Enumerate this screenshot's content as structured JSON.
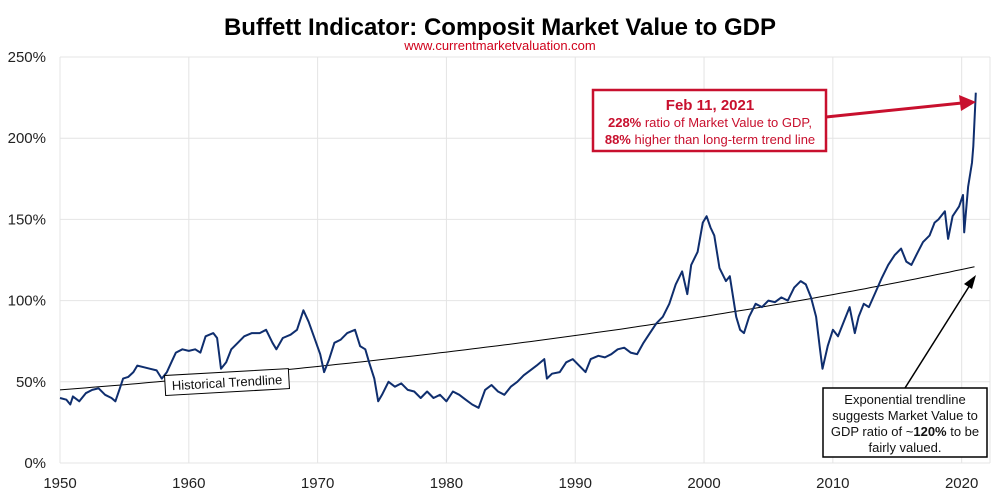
{
  "chart_data": {
    "type": "line",
    "title": "Buffett Indicator: Composit Market Value to GDP",
    "subtitle": "www.currentmarketvaluation.com",
    "xlabel": "",
    "ylabel": "",
    "xlim": [
      1950,
      2022.2
    ],
    "ylim": [
      0,
      250
    ],
    "x_ticks": [
      "1950",
      "1960",
      "1970",
      "1980",
      "1990",
      "2000",
      "2010",
      "2020"
    ],
    "y_ticks": [
      "0%",
      "50%",
      "100%",
      "150%",
      "200%",
      "250%"
    ],
    "grid": true,
    "colors": {
      "series": "#0f2e6e",
      "trend": "#000000",
      "annotation": "#c8102e"
    },
    "series": [
      {
        "x": [
          1950.0,
          1950.5,
          1950.8,
          1951.0,
          1951.5,
          1952.0,
          1952.5,
          1953.0,
          1953.5,
          1954.0,
          1954.3,
          1954.6,
          1954.9,
          1955.3,
          1955.7,
          1956.0,
          1956.5,
          1957.0,
          1957.5,
          1957.9,
          1958.3,
          1958.7,
          1959.0,
          1959.5,
          1960.0,
          1960.5,
          1960.9,
          1961.3,
          1961.9,
          1962.2,
          1962.5,
          1962.9,
          1963.3,
          1963.8,
          1964.3,
          1964.9,
          1965.5,
          1966.0,
          1966.5,
          1966.8,
          1967.3,
          1967.9,
          1968.4,
          1968.9,
          1969.3,
          1969.8,
          1970.2,
          1970.5,
          1970.9,
          1971.3,
          1971.8,
          1972.3,
          1972.9,
          1973.3,
          1973.7,
          1974.0,
          1974.4,
          1974.7,
          1975.0,
          1975.5,
          1976.0,
          1976.5,
          1977.0,
          1977.5,
          1978.0,
          1978.5,
          1979.0,
          1979.5,
          1980.0,
          1980.5,
          1981.0,
          1981.5,
          1982.0,
          1982.5,
          1983.0,
          1983.5,
          1984.0,
          1984.5,
          1985.0,
          1985.5,
          1986.0,
          1986.5,
          1987.0,
          1987.6,
          1987.8,
          1988.2,
          1988.8,
          1989.3,
          1989.8,
          1990.3,
          1990.8,
          1991.2,
          1991.8,
          1992.3,
          1992.8,
          1993.3,
          1993.8,
          1994.3,
          1994.8,
          1995.3,
          1995.8,
          1996.3,
          1996.8,
          1997.3,
          1997.8,
          1998.3,
          1998.7,
          1999.0,
          1999.5,
          1999.9,
          2000.2,
          2000.5,
          2000.8,
          2001.2,
          2001.7,
          2002.0,
          2002.5,
          2002.8,
          2003.1,
          2003.5,
          2004.0,
          2004.5,
          2005.0,
          2005.5,
          2006.0,
          2006.5,
          2007.0,
          2007.5,
          2007.9,
          2008.3,
          2008.7,
          2009.0,
          2009.2,
          2009.6,
          2010.0,
          2010.4,
          2010.9,
          2011.3,
          2011.7,
          2012.0,
          2012.4,
          2012.8,
          2013.3,
          2013.8,
          2014.3,
          2014.8,
          2015.3,
          2015.7,
          2016.1,
          2016.6,
          2017.0,
          2017.5,
          2017.9,
          2018.2,
          2018.7,
          2018.95,
          2019.3,
          2019.8,
          2020.1,
          2020.2,
          2020.5,
          2020.8,
          2020.9,
          2021.1
        ],
        "y": [
          40,
          39,
          36,
          41,
          38,
          43,
          45,
          46,
          42,
          40,
          38,
          45,
          52,
          53,
          56,
          60,
          59,
          58,
          57,
          52,
          56,
          63,
          68,
          70,
          69,
          70,
          68,
          78,
          80,
          77,
          58,
          62,
          70,
          74,
          78,
          80,
          80,
          82,
          74,
          70,
          77,
          79,
          82,
          94,
          87,
          76,
          67,
          56,
          64,
          74,
          76,
          80,
          82,
          72,
          70,
          62,
          52,
          38,
          42,
          50,
          47,
          49,
          45,
          44,
          40,
          44,
          40,
          42,
          38,
          44,
          42,
          39,
          36,
          34,
          45,
          48,
          44,
          42,
          47,
          50,
          54,
          57,
          60,
          64,
          52,
          55,
          56,
          62,
          64,
          60,
          56,
          64,
          66,
          65,
          67,
          70,
          71,
          68,
          67,
          74,
          80,
          86,
          90,
          98,
          110,
          118,
          104,
          122,
          130,
          148,
          152,
          145,
          140,
          120,
          112,
          115,
          90,
          82,
          80,
          90,
          98,
          96,
          100,
          99,
          102,
          100,
          108,
          112,
          110,
          102,
          90,
          70,
          58,
          72,
          82,
          78,
          88,
          96,
          80,
          90,
          98,
          96,
          105,
          114,
          122,
          128,
          132,
          124,
          122,
          130,
          136,
          140,
          148,
          150,
          155,
          138,
          152,
          158,
          165,
          142,
          170,
          185,
          195,
          228
        ]
      }
    ],
    "trendline": {
      "label": "Historical Trendline",
      "type": "exponential",
      "start": [
        1950,
        45
      ],
      "end": [
        2021.1,
        121
      ]
    },
    "annotations": {
      "peak": {
        "date": "Feb 11, 2021",
        "line1_bold": "228%",
        "line1_rest": " ratio of Market Value to GDP,",
        "line2_bold": "88%",
        "line2_rest": " higher than long-term trend line"
      },
      "trend_note": {
        "line1": "Exponential trendline",
        "line2": "suggests Market Value to",
        "line3_pre": "GDP ratio of ~",
        "line3_bold": "120%",
        "line3_post": " to be",
        "line4": "fairly valued."
      }
    }
  }
}
